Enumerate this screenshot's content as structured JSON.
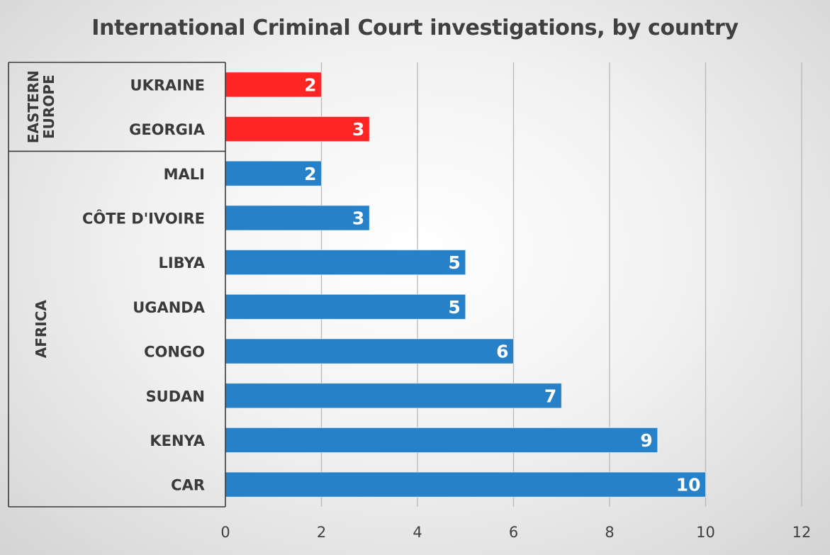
{
  "chart_data": {
    "type": "bar",
    "orientation": "horizontal",
    "title": "International Criminal Court investigations, by country",
    "xlabel": "",
    "ylabel": "",
    "xlim": [
      0,
      12
    ],
    "x_ticks": [
      0,
      2,
      4,
      6,
      8,
      10,
      12
    ],
    "grid": true,
    "data_labels": true,
    "groups": [
      {
        "name": "EASTERN EUROPE",
        "name_lines": [
          "EASTERN",
          "EUROPE"
        ],
        "color": "#ff2525",
        "categories": [
          "UKRAINE",
          "GEORGIA"
        ],
        "values": [
          2,
          3
        ]
      },
      {
        "name": "AFRICA",
        "name_lines": [
          "AFRICA"
        ],
        "color": "#2781c8",
        "categories": [
          "MALI",
          "CÔTE D'IVOIRE",
          "LIBYA",
          "UGANDA",
          "CONGO",
          "SUDAN",
          "KENYA",
          "CAR"
        ],
        "values": [
          2,
          3,
          5,
          5,
          6,
          7,
          9,
          10
        ]
      }
    ]
  }
}
